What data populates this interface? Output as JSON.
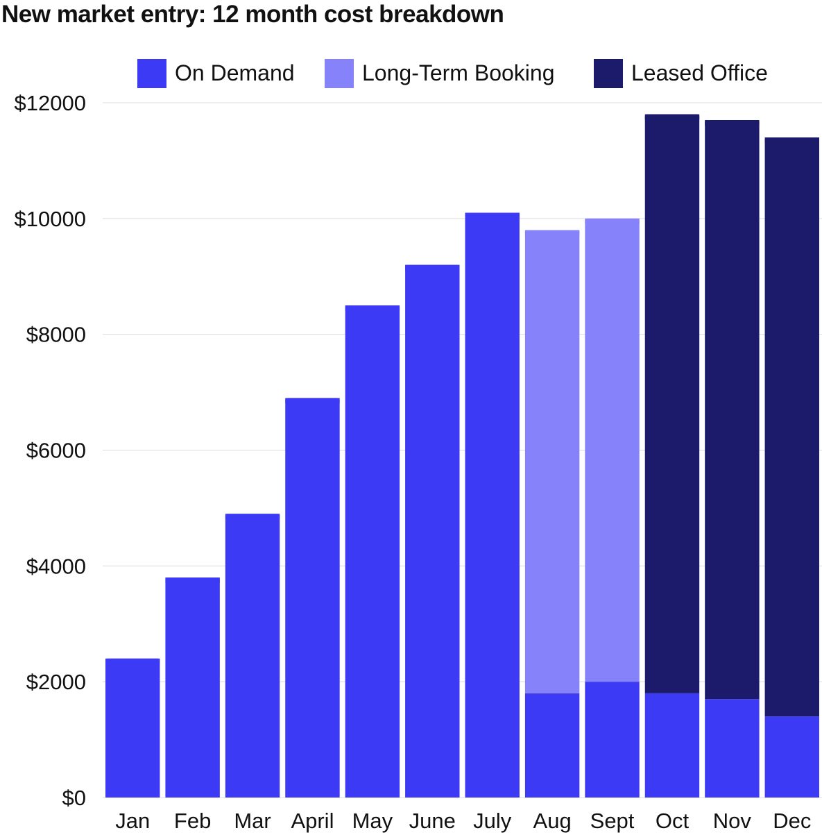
{
  "chart_data": {
    "type": "bar",
    "stacked": true,
    "title": "New market entry: 12 month cost breakdown",
    "xlabel": "",
    "ylabel": "",
    "ylim": [
      0,
      12000
    ],
    "yticks": [
      0,
      2000,
      4000,
      6000,
      8000,
      10000,
      12000
    ],
    "ytick_labels": [
      "$0",
      "$2000",
      "$4000",
      "$6000",
      "$8000",
      "$10000",
      "$12000"
    ],
    "grid": true,
    "legend_position": "top-right",
    "categories": [
      "Jan",
      "Feb",
      "Mar",
      "April",
      "May",
      "June",
      "July",
      "Aug",
      "Sept",
      "Oct",
      "Nov",
      "Dec"
    ],
    "series": [
      {
        "name": "On Demand",
        "color": "#3d3af5",
        "values": [
          2400,
          3800,
          4900,
          6900,
          8500,
          9200,
          10100,
          1800,
          2000,
          1800,
          1700,
          1400
        ]
      },
      {
        "name": "Long-Term Booking",
        "color": "#8683fa",
        "values": [
          0,
          0,
          0,
          0,
          0,
          0,
          0,
          8000,
          8000,
          0,
          0,
          0
        ]
      },
      {
        "name": "Leased Office",
        "color": "#1c1a6b",
        "values": [
          0,
          0,
          0,
          0,
          0,
          0,
          0,
          0,
          0,
          10000,
          10000,
          10000
        ]
      }
    ]
  }
}
